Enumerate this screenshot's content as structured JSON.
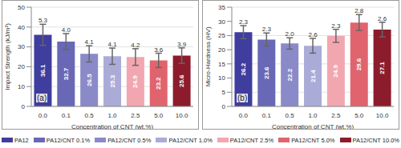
{
  "chart_data": [
    {
      "type": "bar",
      "annotation": "(a)",
      "x_label": "Concentration of CNT (wt.%)",
      "y_label": "Impact Strength (kJ/m²)",
      "categories": [
        "0.0",
        "0.1",
        "0.5",
        "1.0",
        "2.5",
        "5.0",
        "10.0"
      ],
      "values": [
        36.1,
        32.7,
        26.5,
        25.3,
        24.9,
        23.2,
        25.6
      ],
      "errors": [
        5.3,
        4.0,
        4.1,
        4.1,
        4.2,
        3.6,
        3.9
      ],
      "error_labels": [
        "5.3",
        "4.0",
        "4.1",
        "4.1",
        "4.2",
        "3.6",
        "3.9"
      ],
      "colors": [
        "#3f3d9e",
        "#6868b6",
        "#8a8ac8",
        "#ababd8",
        "#f2a7b0",
        "#e0646e",
        "#8c1c2c"
      ],
      "ylim": [
        0,
        50
      ],
      "yticks": [
        0,
        10,
        20,
        30,
        40,
        50
      ],
      "grid": true,
      "data_labels": true
    },
    {
      "type": "bar",
      "annotation": "(b)",
      "x_label": "Concentration of CNT (wt.%)",
      "y_label": "Micro-Hardness (HV)",
      "categories": [
        "0.0",
        "0.1",
        "0.5",
        "1.0",
        "2.5",
        "5.0",
        "10.0"
      ],
      "values": [
        26.2,
        23.6,
        22.2,
        21.4,
        24.9,
        29.6,
        27.1
      ],
      "errors": [
        2.3,
        2.3,
        2.0,
        2.6,
        2.3,
        2.8,
        2.6
      ],
      "error_labels": [
        "2.3",
        "2.3",
        "2.0",
        "2.6",
        "2.3",
        "2.8",
        "2.6"
      ],
      "colors": [
        "#3f3d9e",
        "#6868b6",
        "#8a8ac8",
        "#ababd8",
        "#f2a7b0",
        "#e0646e",
        "#8c1c2c"
      ],
      "ylim": [
        0,
        35
      ],
      "yticks": [
        0,
        5,
        10,
        15,
        20,
        25,
        30,
        35
      ],
      "grid": true,
      "data_labels": true
    }
  ],
  "legend": "bottom",
  "legend_labels": [
    "PA12",
    "PA12/CNT 0.1%",
    "PA12/CNT 0.5%",
    "PA12/CNT 1.0%",
    "PA12/CNT 2.5%",
    "PA12/CNT 5.0%",
    "PA12/CNT 10.0%"
  ]
}
